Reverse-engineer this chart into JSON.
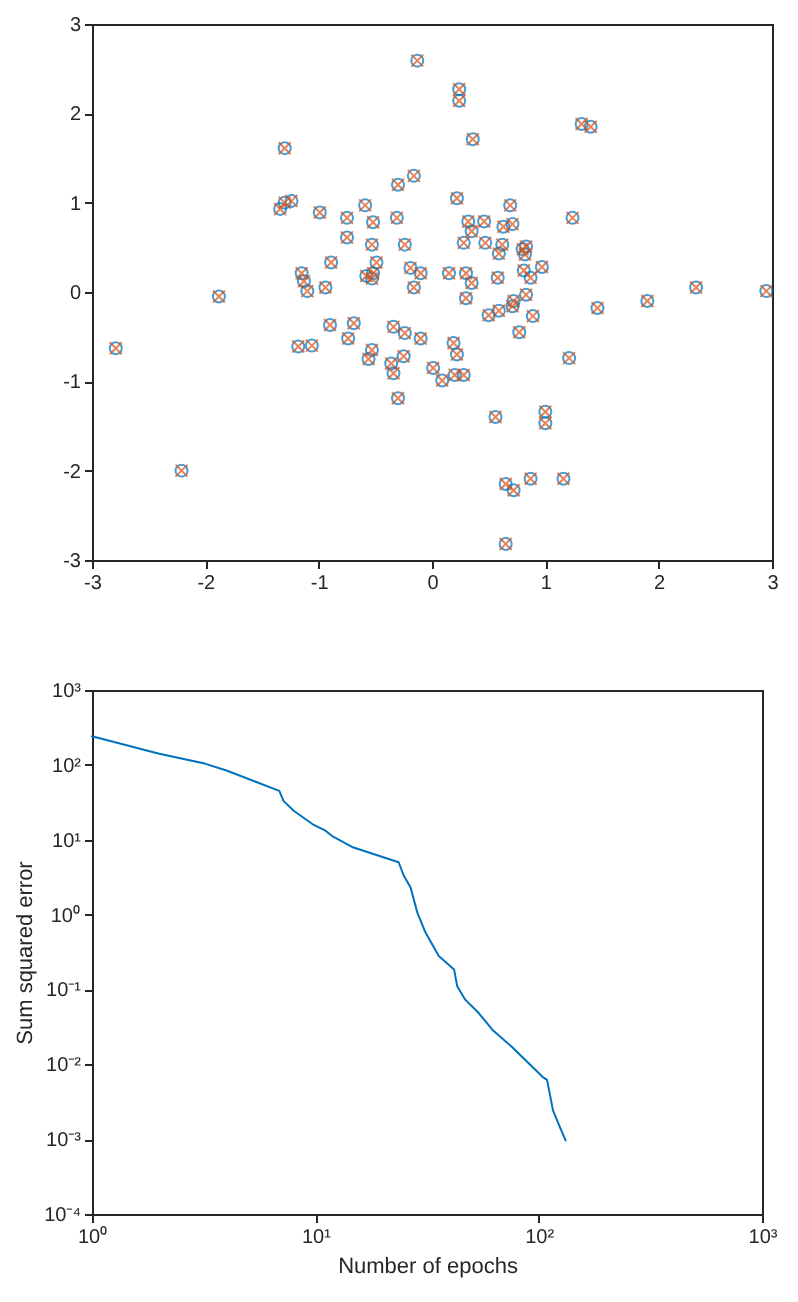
{
  "chart_data": [
    {
      "type": "scatter",
      "xlim": [
        -3,
        3
      ],
      "ylim": [
        -3,
        3
      ],
      "xticks": [
        -3,
        -2,
        -1,
        0,
        1,
        2,
        3
      ],
      "yticks": [
        -3,
        -2,
        -1,
        0,
        1,
        2,
        3
      ],
      "series": [
        {
          "color": "#0072bd",
          "marker": "circle",
          "x": [
            -0.13,
            -1.3,
            -1.34,
            -1.3,
            -1.24,
            -0.99,
            -0.75,
            -0.59,
            -0.52,
            -0.31,
            -0.3,
            -0.16,
            -0.75,
            -0.53,
            -0.24,
            -0.89,
            -0.49,
            -1.15,
            -1.13,
            -1.1,
            -0.94,
            -0.58,
            -0.53,
            -0.52,
            -0.19,
            -0.1,
            -0.16,
            -1.88,
            0.24,
            0.24,
            0.36,
            1.32,
            1.4,
            0.22,
            0.69,
            1.24,
            0.32,
            0.46,
            0.35,
            0.63,
            0.71,
            0.28,
            0.47,
            0.62,
            0.59,
            0.8,
            0.82,
            0.83,
            0.15,
            0.3,
            0.35,
            0.58,
            0.81,
            0.87,
            0.97,
            0.3,
            0.72,
            0.83,
            1.9,
            2.33,
            2.95,
            -2.79,
            -2.21,
            -1.18,
            -1.06,
            -0.9,
            -0.69,
            -0.74,
            -0.53,
            -0.56,
            -0.34,
            -0.24,
            -0.1,
            -0.36,
            -0.34,
            -0.25,
            -0.3,
            0.5,
            0.59,
            0.71,
            0.89,
            0.77,
            1.46,
            0.19,
            0.22,
            0.01,
            0.09,
            0.2,
            0.28,
            1.21,
            0.56,
            1.0,
            1.0,
            0.65,
            0.72,
            0.87,
            1.16,
            0.65
          ],
          "values": [
            2.59,
            1.61,
            0.93,
            1.0,
            1.02,
            0.89,
            0.83,
            0.97,
            0.78,
            0.83,
            1.2,
            1.3,
            0.61,
            0.53,
            0.53,
            0.33,
            0.33,
            0.21,
            0.12,
            0.01,
            0.05,
            0.18,
            0.15,
            0.21,
            0.27,
            0.21,
            0.05,
            -0.05,
            2.27,
            2.14,
            1.71,
            1.88,
            1.85,
            1.05,
            0.97,
            0.83,
            0.79,
            0.79,
            0.68,
            0.73,
            0.76,
            0.55,
            0.55,
            0.53,
            0.43,
            0.48,
            0.42,
            0.51,
            0.21,
            0.21,
            0.1,
            0.16,
            0.24,
            0.16,
            0.28,
            -0.07,
            -0.1,
            -0.03,
            -0.1,
            0.05,
            0.01,
            -0.63,
            -2.0,
            -0.61,
            -0.6,
            -0.37,
            -0.35,
            -0.52,
            -0.65,
            -0.75,
            -0.39,
            -0.46,
            -0.52,
            -0.8,
            -0.91,
            -0.72,
            -1.19,
            -0.26,
            -0.21,
            -0.16,
            -0.27,
            -0.45,
            -0.18,
            -0.57,
            -0.7,
            -0.85,
            -0.99,
            -0.93,
            -0.93,
            -0.74,
            -1.4,
            -1.34,
            -1.47,
            -2.15,
            -2.22,
            -2.09,
            -2.09,
            -2.82
          ]
        },
        {
          "color": "#d95319",
          "marker": "cross",
          "x": [
            -0.13,
            -1.3,
            -1.34,
            -1.3,
            -1.24,
            -0.99,
            -0.75,
            -0.59,
            -0.52,
            -0.31,
            -0.3,
            -0.16,
            -0.75,
            -0.53,
            -0.24,
            -0.89,
            -0.49,
            -1.15,
            -1.13,
            -1.1,
            -0.94,
            -0.58,
            -0.53,
            -0.52,
            -0.19,
            -0.1,
            -0.16,
            -1.88,
            0.24,
            0.24,
            0.36,
            1.32,
            1.4,
            0.22,
            0.69,
            1.24,
            0.32,
            0.46,
            0.35,
            0.63,
            0.71,
            0.28,
            0.47,
            0.62,
            0.59,
            0.8,
            0.82,
            0.83,
            0.15,
            0.3,
            0.35,
            0.58,
            0.81,
            0.87,
            0.97,
            0.3,
            0.72,
            0.83,
            1.9,
            2.33,
            2.95,
            -2.79,
            -2.21,
            -1.18,
            -1.06,
            -0.9,
            -0.69,
            -0.74,
            -0.53,
            -0.56,
            -0.34,
            -0.24,
            -0.1,
            -0.36,
            -0.34,
            -0.25,
            -0.3,
            0.5,
            0.59,
            0.71,
            0.89,
            0.77,
            1.46,
            0.19,
            0.22,
            0.01,
            0.09,
            0.2,
            0.28,
            1.21,
            0.56,
            1.0,
            1.0,
            0.65,
            0.72,
            0.87,
            1.16,
            0.65
          ],
          "values": [
            2.59,
            1.61,
            0.93,
            1.0,
            1.02,
            0.89,
            0.83,
            0.97,
            0.78,
            0.83,
            1.2,
            1.3,
            0.61,
            0.53,
            0.53,
            0.33,
            0.33,
            0.21,
            0.12,
            0.01,
            0.05,
            0.18,
            0.15,
            0.21,
            0.27,
            0.21,
            0.05,
            -0.05,
            2.27,
            2.14,
            1.71,
            1.88,
            1.85,
            1.05,
            0.97,
            0.83,
            0.79,
            0.79,
            0.68,
            0.73,
            0.76,
            0.55,
            0.55,
            0.53,
            0.43,
            0.48,
            0.42,
            0.51,
            0.21,
            0.21,
            0.1,
            0.16,
            0.24,
            0.16,
            0.28,
            -0.07,
            -0.1,
            -0.03,
            -0.1,
            0.05,
            0.01,
            -0.63,
            -2.0,
            -0.61,
            -0.6,
            -0.37,
            -0.35,
            -0.52,
            -0.65,
            -0.75,
            -0.39,
            -0.46,
            -0.52,
            -0.8,
            -0.91,
            -0.72,
            -1.19,
            -0.26,
            -0.21,
            -0.16,
            -0.27,
            -0.45,
            -0.18,
            -0.57,
            -0.7,
            -0.85,
            -0.99,
            -0.93,
            -0.93,
            -0.74,
            -1.4,
            -1.34,
            -1.47,
            -2.15,
            -2.22,
            -2.09,
            -2.09,
            -2.82
          ]
        }
      ]
    },
    {
      "type": "line",
      "log": "xy",
      "xlabel": "Number of epochs",
      "ylabel": "Sum squared error",
      "xlim": [
        1,
        1000
      ],
      "ylim": [
        0.0001,
        1000
      ],
      "xticks": [
        {
          "value": 1,
          "label": "10⁰"
        },
        {
          "value": 10,
          "label": "10¹"
        },
        {
          "value": 100,
          "label": "10²"
        },
        {
          "value": 1000,
          "label": "10³"
        }
      ],
      "yticks": [
        {
          "value": 0.0001,
          "label": "10⁻⁴"
        },
        {
          "value": 0.001,
          "label": "10⁻³"
        },
        {
          "value": 0.01,
          "label": "10⁻²"
        },
        {
          "value": 0.1,
          "label": "10⁻¹"
        },
        {
          "value": 1,
          "label": "10⁰"
        },
        {
          "value": 10,
          "label": "10¹"
        },
        {
          "value": 100,
          "label": "10²"
        },
        {
          "value": 1000,
          "label": "10³"
        }
      ],
      "series": [
        {
          "color": "#0072bd",
          "x": [
            1,
            2,
            3.2,
            4,
            6.9,
            7.2,
            8,
            9.7,
            11.1,
            11.9,
            14.6,
            23.6,
            24.9,
            26.7,
            28.6,
            31.1,
            35.7,
            41.8,
            43.2,
            46.9,
            54,
            62,
            76,
            104,
            109,
            116,
            125,
            132
          ],
          "values": [
            241,
            141,
            104,
            84,
            45,
            33,
            24.4,
            16.2,
            13.2,
            11.2,
            8,
            5,
            3.3,
            2.3,
            1.07,
            0.58,
            0.28,
            0.185,
            0.11,
            0.073,
            0.048,
            0.029,
            0.017,
            0.0068,
            0.0062,
            0.0024,
            0.0014,
            0.00096
          ]
        }
      ]
    }
  ]
}
